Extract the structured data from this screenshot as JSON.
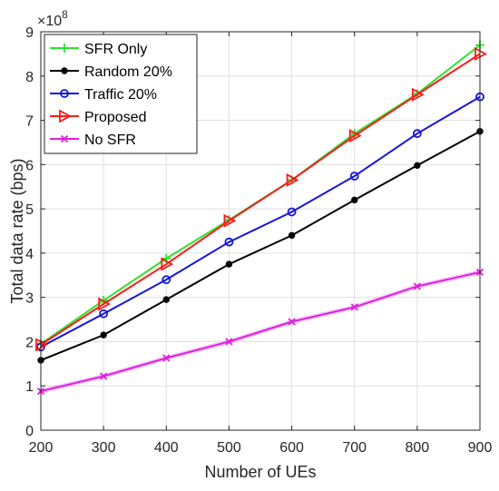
{
  "chart_data": {
    "type": "line",
    "title": "",
    "xlabel": "Number of UEs",
    "ylabel": "Total data rate (bps)",
    "y_multiplier_base": "×10",
    "y_multiplier_exponent": "8",
    "xlim": [
      200,
      900
    ],
    "ylim": [
      0,
      9
    ],
    "grid": true,
    "legend_position": "top-left",
    "x_ticks": [
      200,
      300,
      400,
      500,
      600,
      700,
      800,
      900
    ],
    "y_ticks": [
      0,
      1,
      2,
      3,
      4,
      5,
      6,
      7,
      8,
      9
    ],
    "x": [
      200,
      300,
      400,
      500,
      600,
      700,
      800,
      900
    ],
    "series": [
      {
        "name": "SFR Only",
        "color": "#2fe22f",
        "marker": "plus",
        "values": [
          1.95,
          2.93,
          3.88,
          4.75,
          5.65,
          6.7,
          7.6,
          8.7
        ]
      },
      {
        "name": "Random 20%",
        "color": "#000000",
        "marker": "dot",
        "values": [
          1.58,
          2.15,
          2.95,
          3.75,
          4.4,
          5.2,
          5.98,
          6.75
        ]
      },
      {
        "name": "Traffic 20%",
        "color": "#1515d9",
        "marker": "circle",
        "values": [
          1.88,
          2.63,
          3.4,
          4.25,
          4.93,
          5.74,
          6.7,
          7.53
        ]
      },
      {
        "name": "Proposed",
        "color": "#ff1a1a",
        "marker": "triangle-right",
        "values": [
          1.93,
          2.85,
          3.75,
          4.73,
          5.65,
          6.65,
          7.58,
          8.5
        ]
      },
      {
        "name": "No SFR",
        "color": "#e020e0",
        "marker": "cross",
        "values": [
          0.88,
          1.22,
          1.63,
          2.0,
          2.45,
          2.78,
          3.25,
          3.57
        ]
      }
    ]
  }
}
